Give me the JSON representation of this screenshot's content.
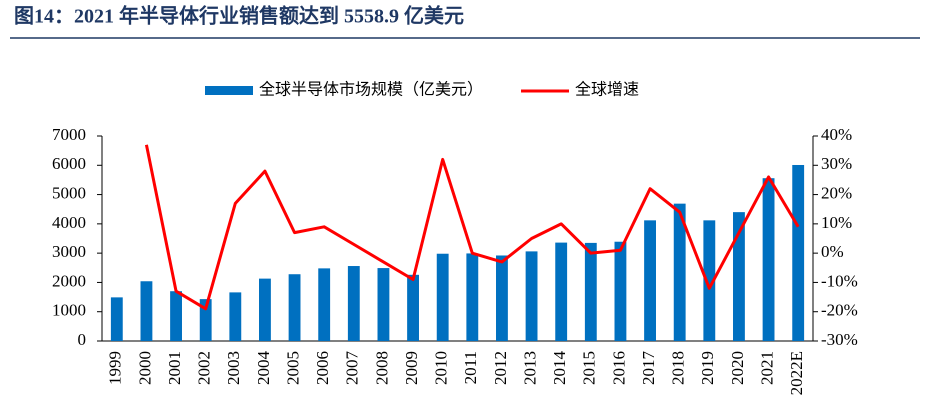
{
  "chart_data": {
    "type": "bar_line",
    "title": "图14：2021 年半导体行业销售额达到 5558.9 亿美元",
    "categories": [
      "1999",
      "2000",
      "2001",
      "2002",
      "2003",
      "2004",
      "2005",
      "2006",
      "2007",
      "2008",
      "2009",
      "2010",
      "2011",
      "2012",
      "2013",
      "2014",
      "2015",
      "2016",
      "2017",
      "2018",
      "2019",
      "2020",
      "2021",
      "2022E"
    ],
    "series": [
      {
        "name": "全球半导体市场规模（亿美元）",
        "type": "bar",
        "color": "#0070c0",
        "values": [
          1490,
          2040,
          1700,
          1430,
          1660,
          2130,
          2280,
          2480,
          2560,
          2490,
          2260,
          2980,
          2990,
          2920,
          3060,
          3360,
          3350,
          3390,
          4120,
          4690,
          4120,
          4400,
          5559,
          6010
        ]
      },
      {
        "name": "全球增速",
        "type": "line",
        "axis": "y2",
        "color": "#ff0000",
        "values": [
          null,
          37,
          -13,
          -19,
          17,
          28,
          7,
          9,
          3,
          -3,
          -9,
          32,
          0,
          -3,
          5,
          10,
          0,
          1,
          22,
          14,
          -12,
          7,
          26,
          9
        ]
      }
    ],
    "ylim": [
      0,
      7000
    ],
    "yticks": [
      0,
      1000,
      2000,
      3000,
      4000,
      5000,
      6000,
      7000
    ],
    "y2lim": [
      -30,
      40
    ],
    "y2ticks": [
      {
        "value": -30,
        "label": "-30%"
      },
      {
        "value": -20,
        "label": "-20%"
      },
      {
        "value": -10,
        "label": "-10%"
      },
      {
        "value": 0,
        "label": "0%"
      },
      {
        "value": 10,
        "label": "10%"
      },
      {
        "value": 20,
        "label": "20%"
      },
      {
        "value": 30,
        "label": "30%"
      },
      {
        "value": 40,
        "label": "40%"
      }
    ],
    "legend": "top"
  }
}
